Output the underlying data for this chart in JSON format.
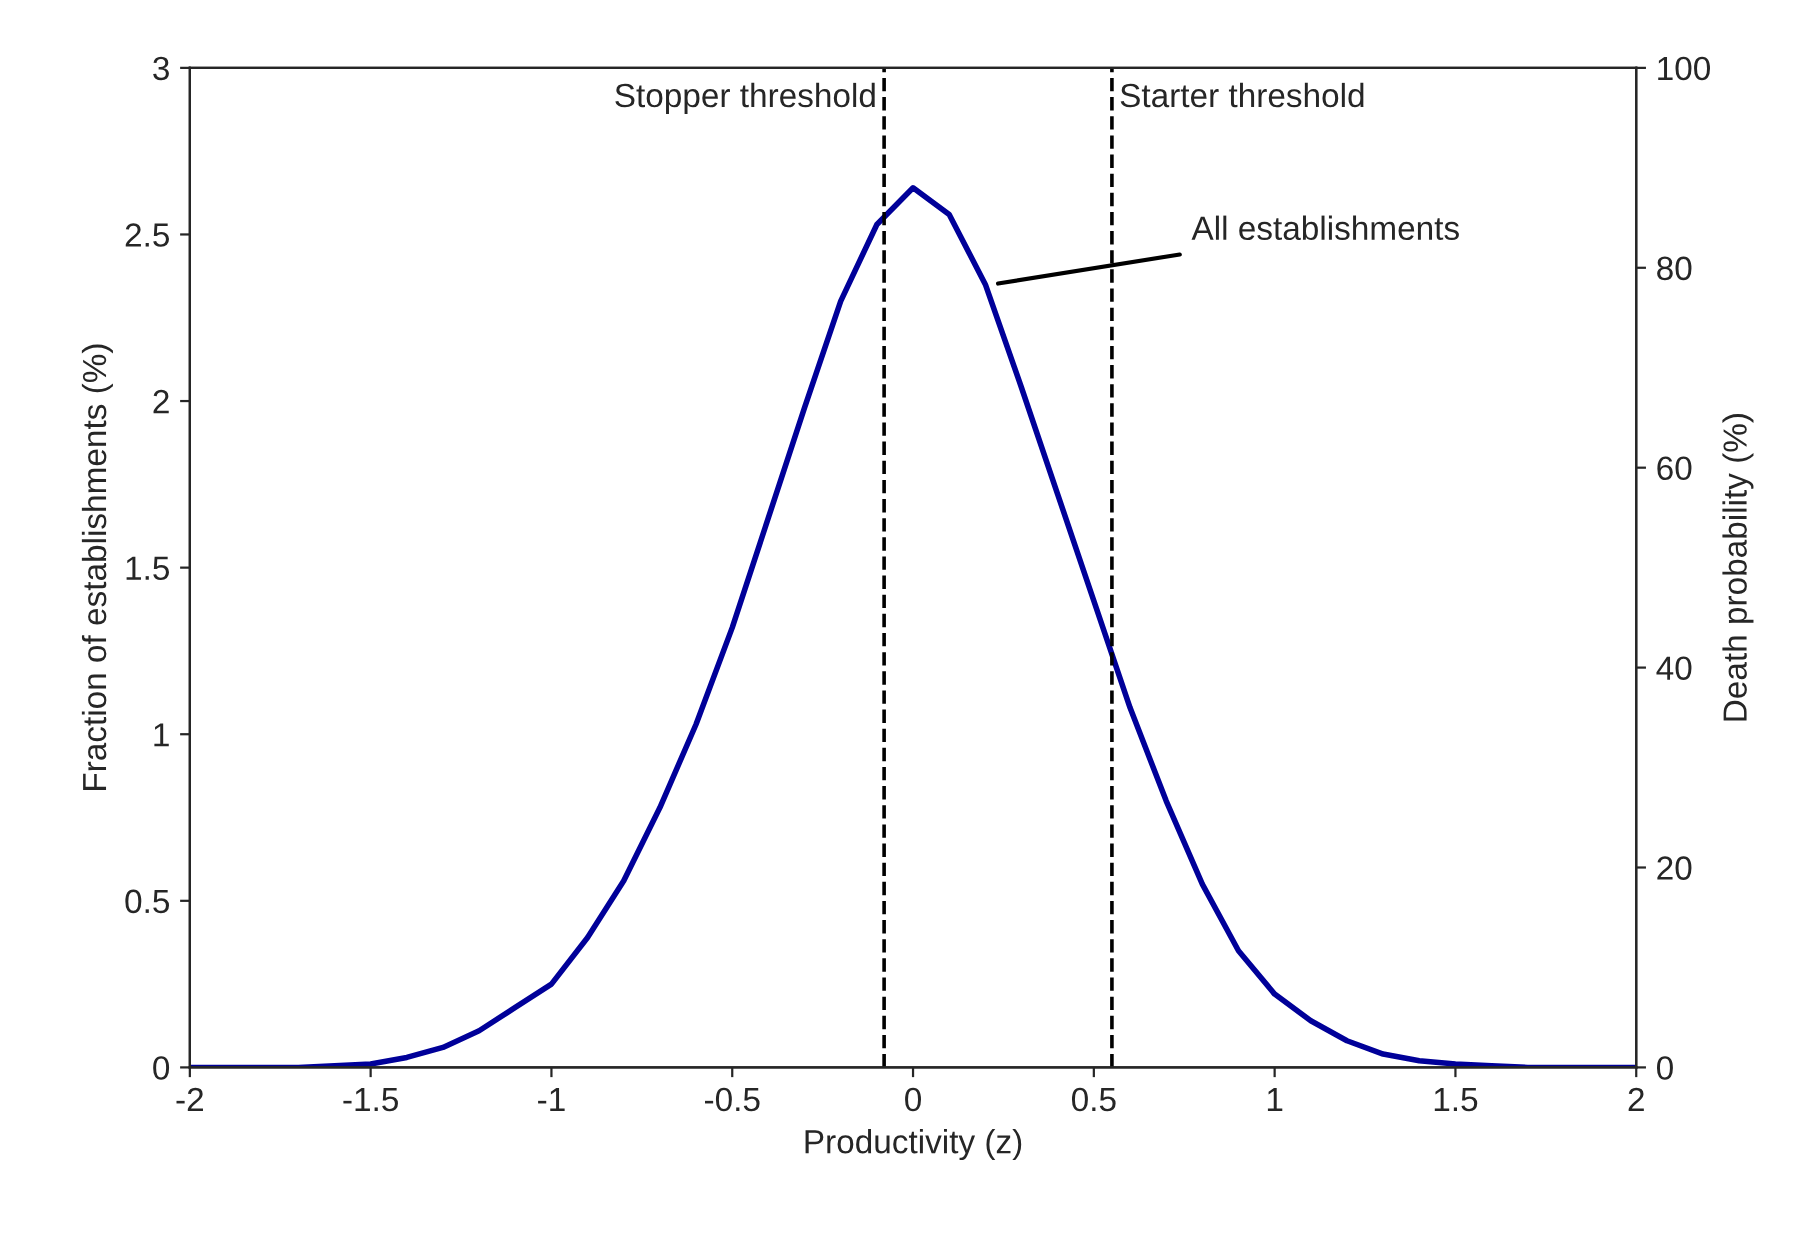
{
  "chart_data": {
    "type": "line",
    "xlabel": "Productivity (z)",
    "ylabel": "Fraction of establishments (%)",
    "y2label": "Death probability (%)",
    "x": [
      -2,
      -1.9,
      -1.8,
      -1.7,
      -1.6,
      -1.5,
      -1.4,
      -1.3,
      -1.2,
      -1.1,
      -1.0,
      -0.9,
      -0.8,
      -0.7,
      -0.6,
      -0.5,
      -0.4,
      -0.3,
      -0.2,
      -0.1,
      0,
      0.1,
      0.2,
      0.3,
      0.4,
      0.5,
      0.6,
      0.7,
      0.8,
      0.9,
      1.0,
      1.1,
      1.2,
      1.3,
      1.4,
      1.5,
      1.6,
      1.7,
      1.8,
      1.9,
      2
    ],
    "series": [
      {
        "color": "#000099",
        "values": [
          0,
          0,
          0,
          0,
          0.005,
          0.01,
          0.03,
          0.06,
          0.11,
          0.18,
          0.25,
          0.39,
          0.56,
          0.78,
          1.03,
          1.32,
          1.65,
          1.98,
          2.3,
          2.53,
          2.64,
          2.56,
          2.35,
          2.04,
          1.72,
          1.4,
          1.08,
          0.8,
          0.55,
          0.35,
          0.22,
          0.14,
          0.08,
          0.04,
          0.02,
          0.01,
          0.005,
          0,
          0,
          0,
          0
        ]
      }
    ],
    "xlim": [
      -2,
      2
    ],
    "xticks": [
      -2,
      -1.5,
      -1,
      -0.5,
      0,
      0.5,
      1,
      1.5,
      2
    ],
    "ylim": [
      0,
      3
    ],
    "yticks": [
      0,
      0.5,
      1,
      1.5,
      2,
      2.5,
      3
    ],
    "y2lim": [
      0,
      100
    ],
    "y2ticks": [
      0,
      20,
      40,
      60,
      80,
      100
    ],
    "ref_lines": [
      {
        "axis": "x",
        "value": -0.08,
        "label": "Stopper threshold",
        "color": "#000000",
        "line_style": "dashed"
      },
      {
        "axis": "x",
        "value": 0.55,
        "label": "Starter threshold",
        "color": "#000000",
        "line_style": "dashed"
      }
    ],
    "annotations": [
      {
        "text": "All establishments",
        "x": 0.22,
        "y": 2.35
      }
    ],
    "grid": false,
    "legend": false,
    "marker": "none",
    "line_style": "solid"
  }
}
